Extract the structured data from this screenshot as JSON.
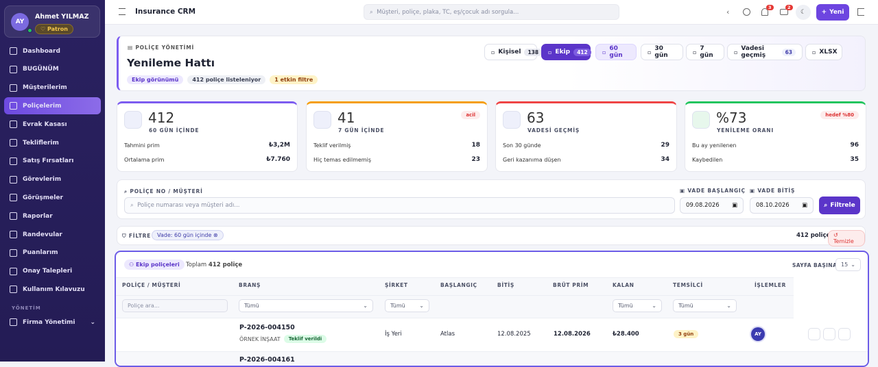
{
  "user": {
    "initials": "AY",
    "name": "Ahmet YILMAZ",
    "role": "Patron"
  },
  "sidebar": {
    "items": [
      "Dashboard",
      "BUGÜNÜM",
      "Müşterilerim",
      "Poliçelerim",
      "Evrak Kasası",
      "Tekliflerim",
      "Satış Fırsatları",
      "Görevlerim",
      "Görüşmeler",
      "Raporlar",
      "Randevular",
      "Puanlarım",
      "Onay Talepleri",
      "Kullanım Kılavuzu"
    ],
    "section": "YÖNETİM",
    "section_item": "Firma Yönetimi"
  },
  "topbar": {
    "title": "Insurance CRM",
    "search": "Müşteri, poliçe, plaka, TC, eş/çocuk adı sorgula...",
    "notifications": "3",
    "messages": "2",
    "new": "Yeni"
  },
  "header": {
    "eyebrow": "POLİÇE YÖNETİMİ",
    "title": "Yenileme Hattı",
    "chips": [
      "Ekip görünümü",
      "412 poliçe listeleniyor",
      "1 etkin filtre"
    ],
    "tabs": [
      {
        "label": "Kişisel",
        "count": "138"
      },
      {
        "label": "Ekip",
        "count": "412"
      },
      {
        "label": "60 gün"
      },
      {
        "label": "30 gün"
      },
      {
        "label": "7 gün"
      },
      {
        "label": "Vadesi geçmiş",
        "count": "63"
      },
      {
        "label": "XLSX"
      }
    ]
  },
  "stats": [
    {
      "value": "412",
      "label": "60 GÜN İÇİNDE",
      "rows": [
        [
          "Tahmini prim",
          "₺3,2M"
        ],
        [
          "Ortalama prim",
          "₺7.760"
        ]
      ]
    },
    {
      "value": "41",
      "label": "7 GÜN İÇİNDE",
      "badge": "acil",
      "rows": [
        [
          "Teklif verilmiş",
          "18"
        ],
        [
          "Hiç temas edilmemiş",
          "23"
        ]
      ]
    },
    {
      "value": "63",
      "label": "VADESİ GEÇMİŞ",
      "rows": [
        [
          "Son 30 günde",
          "29"
        ],
        [
          "Geri kazanıma düşen",
          "34"
        ]
      ]
    },
    {
      "value": "%73",
      "label": "YENİLEME ORANI",
      "badge": "hedef %80",
      "rows": [
        [
          "Bu ay yenilenen",
          "96"
        ],
        [
          "Kaybedilen",
          "35"
        ]
      ]
    }
  ],
  "filters": {
    "search_label": "POLİÇE NO / MÜŞTERİ",
    "search_placeholder": "Poliçe numarası veya müşteri adı...",
    "start_label": "VADE BAŞLANGIÇ",
    "start": "09.08.2026",
    "end_label": "VADE BİTİŞ",
    "end": "08.10.2026",
    "button": "Filtrele"
  },
  "filter_bar": {
    "label": "FİLTRE",
    "chip": "Vade: 60 gün içinde",
    "count": "412 poliçe",
    "clear": "Temizle"
  },
  "table": {
    "tab": "Ekip poliçeleri",
    "total_label": "Toplam",
    "total": "412 poliçe",
    "page_size_label": "SAYFA BAŞINA",
    "page_size": "15",
    "columns": [
      "POLİÇE / MÜŞTERİ",
      "BRANŞ",
      "ŞİRKET",
      "BAŞLANGIÇ",
      "BİTİŞ",
      "BRÜT PRİM",
      "KALAN",
      "TEMSİLCİ",
      "İŞLEMLER"
    ],
    "column_filters": [
      "Poliçe ara...",
      "Tümü",
      "Tümü",
      "Tümü",
      "Tümü"
    ],
    "rows": [
      {
        "policy": "P-2026-004150",
        "customer": "ÖRNEK İNŞAAT",
        "status": "Teklif verildi",
        "branch": "İş Yeri",
        "company": "Atlas",
        "start": "12.08.2025",
        "end": "12.08.2026",
        "premium": "₺28.400",
        "remaining": "3 gün",
        "rep": "AY"
      },
      {
        "policy": "P-2026-004161"
      }
    ]
  }
}
